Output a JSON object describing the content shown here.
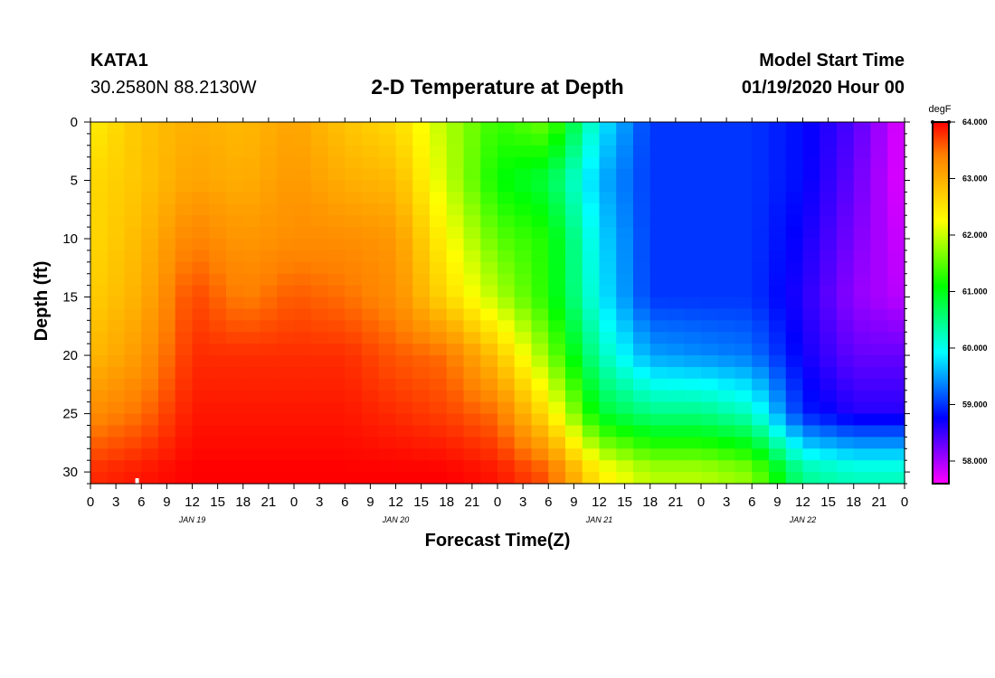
{
  "header": {
    "station": "KATA1",
    "coordinates": "30.2580N 88.2130W",
    "title": "2-D Temperature at Depth",
    "start_label": "Model Start Time",
    "start_value": "01/19/2020 Hour 00"
  },
  "chart_data": {
    "type": "heatmap",
    "title": "2-D Temperature at Depth",
    "xlabel": "Forecast Time(Z)",
    "ylabel": "Depth (ft)",
    "x_unit": "forecast hour",
    "x_range": [
      0,
      96
    ],
    "x_tick_labels": [
      "0",
      "3",
      "6",
      "9",
      "12",
      "15",
      "18",
      "21",
      "0",
      "3",
      "6",
      "9",
      "12",
      "15",
      "18",
      "21",
      "0",
      "3",
      "6",
      "9",
      "12",
      "15",
      "18",
      "21",
      "0",
      "3",
      "6",
      "9",
      "12",
      "15",
      "18",
      "21",
      "0"
    ],
    "date_labels": [
      {
        "label": "JAN 19",
        "hour": 12
      },
      {
        "label": "JAN 20",
        "hour": 36
      },
      {
        "label": "JAN 21",
        "hour": 60
      },
      {
        "label": "JAN 22",
        "hour": 84
      }
    ],
    "y_range": [
      0,
      31
    ],
    "y_ticks": [
      0,
      5,
      10,
      15,
      20,
      25,
      30
    ],
    "y_inverted": true,
    "colorbar": {
      "unit": "degF",
      "min": 57.6,
      "max": 64.0,
      "ticks": [
        "64.000",
        "63.000",
        "62.000",
        "61.000",
        "60.000",
        "59.000",
        "58.000"
      ],
      "colors": [
        "#ff00ff",
        "#8000ff",
        "#0000ff",
        "#0080ff",
        "#00ffff",
        "#00ff80",
        "#00ff00",
        "#80ff00",
        "#ffff00",
        "#ffc000",
        "#ff8000",
        "#ff0000"
      ]
    },
    "grid": false,
    "x_hours": [
      0,
      6,
      12,
      18,
      24,
      30,
      36,
      42,
      48,
      54,
      60,
      66,
      72,
      78,
      84,
      90,
      96
    ],
    "depths_ft": [
      0,
      5,
      10,
      15,
      20,
      25,
      30
    ],
    "values_degF": [
      [
        62.4,
        62.8,
        63.0,
        62.9,
        63.1,
        62.8,
        62.6,
        61.9,
        61.3,
        61.6,
        59.9,
        59.0,
        59.0,
        59.0,
        58.8,
        58.4,
        57.7
      ],
      [
        62.6,
        62.8,
        63.1,
        63.0,
        63.2,
        63.0,
        62.9,
        62.0,
        61.1,
        60.8,
        59.6,
        59.0,
        59.0,
        59.0,
        58.8,
        58.3,
        57.7
      ],
      [
        62.6,
        62.9,
        63.4,
        63.2,
        63.3,
        63.3,
        63.2,
        62.3,
        61.5,
        61.2,
        59.8,
        59.0,
        59.0,
        59.0,
        58.7,
        58.2,
        57.8
      ],
      [
        62.7,
        63.0,
        63.7,
        63.4,
        63.6,
        63.5,
        63.3,
        62.6,
        61.9,
        61.2,
        59.9,
        59.0,
        59.0,
        59.0,
        58.6,
        58.1,
        57.9
      ],
      [
        62.9,
        63.2,
        63.8,
        63.8,
        63.8,
        63.8,
        63.6,
        63.5,
        62.8,
        61.7,
        60.3,
        59.5,
        59.4,
        59.3,
        58.7,
        58.3,
        58.3
      ],
      [
        63.3,
        63.5,
        63.9,
        63.9,
        63.9,
        63.9,
        63.8,
        63.7,
        63.5,
        62.5,
        60.9,
        60.5,
        60.5,
        60.2,
        58.9,
        58.6,
        58.6
      ],
      [
        63.8,
        63.9,
        64.0,
        64.0,
        64.0,
        64.0,
        64.0,
        64.0,
        63.9,
        63.6,
        62.4,
        61.9,
        61.9,
        61.7,
        60.4,
        60.2,
        60.2
      ]
    ],
    "marker": {
      "hour": 5.5,
      "depth_ft": 31
    }
  }
}
